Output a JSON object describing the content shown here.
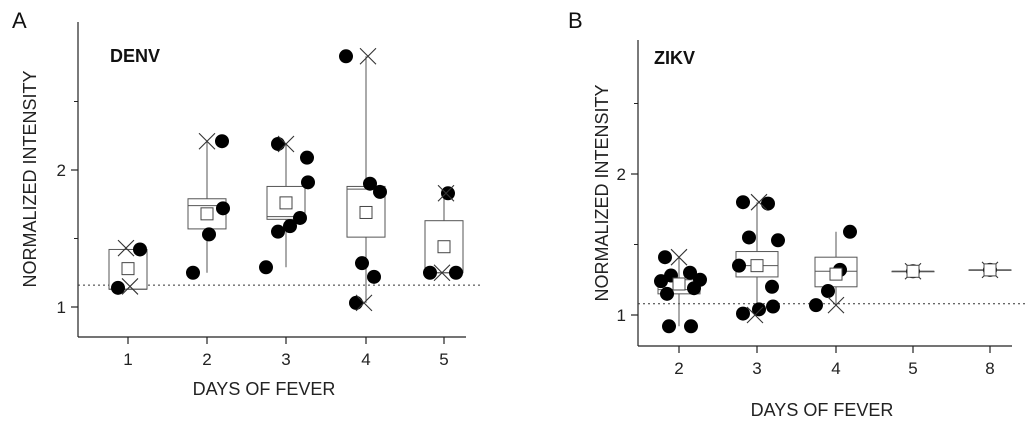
{
  "chart_data": [
    {
      "type": "box",
      "panel_label": "A",
      "title": "DENV",
      "xlabel": "DAYS OF FEVER",
      "ylabel": "NORMALIZED INTENSITY",
      "ylim": [
        0.95,
        2.85
      ],
      "yticks": [
        "1",
        "2"
      ],
      "categories": [
        "1",
        "2",
        "3",
        "4",
        "5"
      ],
      "reference_line": 1.16,
      "grid": false,
      "groups": [
        {
          "label": "1",
          "q1": 1.13,
          "median": 1.13,
          "q3": 1.42,
          "whisker_low": 1.13,
          "whisker_high": 1.42,
          "mean": 1.28,
          "points": [
            1.14,
            1.42
          ],
          "crosses": [
            1.43,
            1.15
          ]
        },
        {
          "label": "2",
          "q1": 1.57,
          "median": 1.74,
          "q3": 1.79,
          "whisker_low": 1.25,
          "whisker_high": 2.21,
          "mean": 1.68,
          "points": [
            1.25,
            1.53,
            1.72,
            2.21
          ],
          "crosses": [
            2.21
          ]
        },
        {
          "label": "3",
          "q1": 1.64,
          "median": 1.66,
          "q3": 1.88,
          "whisker_low": 1.29,
          "whisker_high": 2.19,
          "mean": 1.76,
          "points": [
            1.29,
            1.55,
            1.59,
            1.65,
            1.91,
            2.09,
            2.19
          ],
          "crosses": [
            2.19
          ]
        },
        {
          "label": "4",
          "q1": 1.51,
          "median": 1.86,
          "q3": 1.88,
          "whisker_low": 1.03,
          "whisker_high": 2.83,
          "mean": 1.69,
          "points": [
            1.03,
            1.22,
            1.32,
            1.84,
            1.9,
            2.83
          ],
          "crosses": [
            1.03,
            2.83
          ]
        },
        {
          "label": "5",
          "q1": 1.25,
          "median": 1.25,
          "q3": 1.63,
          "whisker_low": 1.25,
          "whisker_high": 1.83,
          "mean": 1.44,
          "points": [
            1.25,
            1.25,
            1.83
          ],
          "crosses": [
            1.25,
            1.83
          ]
        }
      ]
    },
    {
      "type": "box",
      "panel_label": "B",
      "title": "ZIKV",
      "xlabel": "DAYS OF FEVER",
      "ylabel": "NORMALIZED INTENSITY",
      "ylim": [
        0.9,
        2.95
      ],
      "yticks": [
        "1",
        "2"
      ],
      "categories": [
        "2",
        "3",
        "4",
        "5",
        "8"
      ],
      "reference_line": 1.08,
      "grid": false,
      "groups": [
        {
          "label": "2",
          "q1": 1.15,
          "median": 1.18,
          "q3": 1.25,
          "whisker_low": 0.92,
          "whisker_high": 1.41,
          "mean": 1.22,
          "points": [
            0.92,
            0.92,
            1.15,
            1.19,
            1.24,
            1.25,
            1.28,
            1.3,
            1.41
          ],
          "crosses": [
            1.41
          ]
        },
        {
          "label": "3",
          "q1": 1.27,
          "median": 1.35,
          "q3": 1.45,
          "whisker_low": 1.0,
          "whisker_high": 1.8,
          "mean": 1.35,
          "points": [
            1.01,
            1.04,
            1.06,
            1.2,
            1.35,
            1.53,
            1.55,
            1.79,
            1.8
          ],
          "crosses": [
            1.0,
            1.8
          ]
        },
        {
          "label": "4",
          "q1": 1.2,
          "median": 1.31,
          "q3": 1.41,
          "whisker_low": 1.07,
          "whisker_high": 1.59,
          "mean": 1.29,
          "points": [
            1.07,
            1.17,
            1.32,
            1.59
          ],
          "crosses": [
            1.07
          ]
        },
        {
          "label": "5",
          "q1": 1.31,
          "median": 1.31,
          "q3": 1.31,
          "whisker_low": 1.31,
          "whisker_high": 1.31,
          "mean": 1.31,
          "points": [
            1.31
          ],
          "crosses": [
            1.31
          ]
        },
        {
          "label": "8",
          "q1": 1.32,
          "median": 1.32,
          "q3": 1.32,
          "whisker_low": 1.32,
          "whisker_high": 1.32,
          "mean": 1.32,
          "points": [
            1.32
          ],
          "crosses": [
            1.32
          ]
        }
      ]
    }
  ]
}
